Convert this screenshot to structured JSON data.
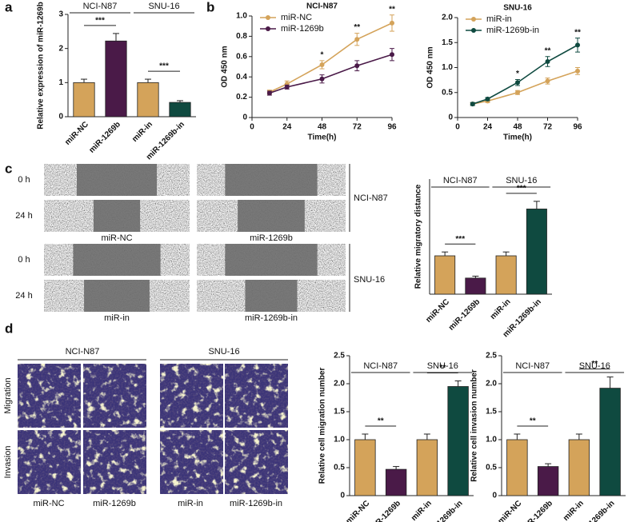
{
  "panel_labels": [
    "a",
    "b",
    "c",
    "d"
  ],
  "wound_healing": {
    "time_labels": [
      "0 h",
      "24 h",
      "0 h",
      "24 h"
    ],
    "group_labels": [
      "NCI-N87",
      "SNU-16"
    ],
    "image_labels": [
      "miR-NC",
      "miR-1269b",
      "miR-in",
      "miR-1269b-in"
    ]
  },
  "transwell": {
    "group_labels": [
      "NCI-N87",
      "SNU-16"
    ],
    "row_labels": [
      "Migration",
      "Invasion"
    ],
    "image_labels": [
      "miR-NC",
      "miR-1269b",
      "miR-in",
      "miR-1269b-in"
    ]
  },
  "chart_data": [
    {
      "type": "bar",
      "y_label": "Relative expression of miR-1269b",
      "categories": [
        "miR-NC",
        "miR-1269b",
        "miR-in",
        "miR-1269b-in"
      ],
      "values": [
        1.0,
        2.22,
        1.0,
        0.42
      ],
      "errors": [
        0.1,
        0.22,
        0.1,
        0.05
      ],
      "colors": [
        "#d4a35a",
        "#4a1a48",
        "#d4a35a",
        "#0f4a40"
      ],
      "groups": [
        "NCI-N87",
        "SNU-16"
      ],
      "significance": [
        "***",
        "***"
      ],
      "ylim": [
        0,
        3
      ],
      "yticks": [
        0,
        1,
        2,
        3
      ]
    },
    {
      "type": "line",
      "title": "NCI-N87",
      "x_label": "Time(h)",
      "y_label": "OD 450 nm",
      "x": [
        12,
        24,
        48,
        72,
        96
      ],
      "series": [
        {
          "name": "miR-NC",
          "color": "#d4a35a",
          "values": [
            0.25,
            0.33,
            0.52,
            0.77,
            0.93
          ],
          "errors": [
            0.02,
            0.03,
            0.04,
            0.06,
            0.08
          ]
        },
        {
          "name": "miR-1269b",
          "color": "#4a1a48",
          "values": [
            0.24,
            0.3,
            0.38,
            0.51,
            0.62
          ],
          "errors": [
            0.02,
            0.02,
            0.04,
            0.05,
            0.06
          ]
        }
      ],
      "annotations": [
        null,
        null,
        "*",
        "**",
        "**"
      ],
      "legend": "upper left",
      "xlim": [
        0,
        96
      ],
      "xticks": [
        0,
        24,
        48,
        72,
        96
      ],
      "ylim": [
        0,
        1
      ],
      "yticks": [
        0,
        0.2,
        0.4,
        0.6,
        0.8,
        {
          "value": 1,
          "label": "1.0"
        }
      ]
    },
    {
      "type": "line",
      "title": "SNU-16",
      "x_label": "Time(h)",
      "y_label": "OD 450 nm",
      "x": [
        12,
        24,
        48,
        72,
        96
      ],
      "series": [
        {
          "name": "miR-in",
          "color": "#d4a35a",
          "values": [
            0.27,
            0.33,
            0.5,
            0.73,
            0.93
          ],
          "errors": [
            0.03,
            0.03,
            0.04,
            0.06,
            0.07
          ]
        },
        {
          "name": "miR-1269b-in",
          "color": "#0f4a40",
          "values": [
            0.27,
            0.37,
            0.7,
            1.12,
            1.45
          ],
          "errors": [
            0.03,
            0.03,
            0.06,
            0.1,
            0.14
          ]
        }
      ],
      "annotations": [
        null,
        null,
        "*",
        "**",
        "**"
      ],
      "legend": "upper left",
      "xlim": [
        0,
        96
      ],
      "xticks": [
        0,
        24,
        48,
        72,
        96
      ],
      "ylim": [
        0,
        2
      ],
      "yticks": [
        0,
        0.5,
        {
          "value": 1,
          "label": "1.0"
        },
        1.5,
        {
          "value": 2,
          "label": "2.0"
        }
      ]
    },
    {
      "type": "bar",
      "y_label": "Relative migratory distance",
      "categories": [
        "miR-NC",
        "miR-1269b",
        "miR-in",
        "miR-1269b-in"
      ],
      "values": [
        1.0,
        0.42,
        1.0,
        2.22
      ],
      "errors": [
        0.1,
        0.05,
        0.1,
        0.2
      ],
      "colors": [
        "#d4a35a",
        "#4a1a48",
        "#d4a35a",
        "#0f4a40"
      ],
      "groups": [
        "NCI-N87",
        "SNU-16"
      ],
      "significance": [
        "***",
        "***"
      ],
      "ylim": [
        0,
        3
      ]
    },
    {
      "type": "bar",
      "y_label": "Relative cell migration number",
      "categories": [
        "miR-NC",
        "miR-1269b",
        "miR-in",
        "miR-1269b-in"
      ],
      "values": [
        1.0,
        0.47,
        1.0,
        1.95
      ],
      "errors": [
        0.1,
        0.05,
        0.1,
        0.1
      ],
      "colors": [
        "#d4a35a",
        "#4a1a48",
        "#d4a35a",
        "#0f4a40"
      ],
      "groups": [
        "NCI-N87",
        "SNU-16"
      ],
      "significance": [
        "**",
        "**"
      ],
      "ylim": [
        0,
        2.5
      ],
      "yticks": [
        0,
        0.5,
        {
          "value": 1,
          "label": "1.0"
        },
        1.5,
        {
          "value": 2,
          "label": "2.0"
        },
        2.5
      ]
    },
    {
      "type": "bar",
      "y_label": "Relative cell invasion number",
      "categories": [
        "miR-NC",
        "miR-1269b",
        "miR-in",
        "miR-1269b-in"
      ],
      "values": [
        1.0,
        0.52,
        1.0,
        1.92
      ],
      "errors": [
        0.1,
        0.05,
        0.1,
        0.2
      ],
      "colors": [
        "#d4a35a",
        "#4a1a48",
        "#d4a35a",
        "#0f4a40"
      ],
      "groups": [
        "NCI-N87",
        "SNU-16"
      ],
      "significance": [
        "**",
        "**"
      ],
      "ylim": [
        0,
        2.5
      ],
      "yticks": [
        0,
        0.5,
        {
          "value": 1,
          "label": "1.0"
        },
        1.5,
        {
          "value": 2,
          "label": "2.0"
        },
        2.5
      ]
    }
  ]
}
